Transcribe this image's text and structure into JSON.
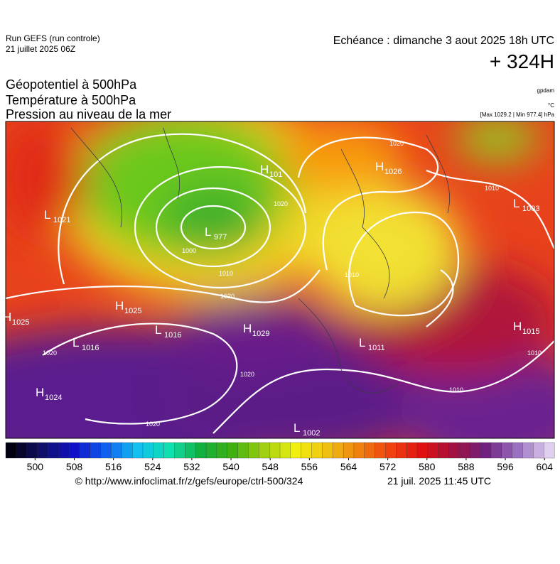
{
  "header": {
    "run": "Run GEFS (run controle)",
    "date": "21 juillet 2025 06Z",
    "echeance": "Echéance : dimanche 3 aout 2025 18h UTC",
    "lead": "+ 324H",
    "titles": [
      "Géopotentiel à 500hPa",
      "Température à 500hPa",
      "Pression au niveau de la mer"
    ],
    "units": [
      "gpdam",
      "°C"
    ],
    "range": "[Max 1029.2 | Min 977.4] hPa"
  },
  "map": {
    "centers": [
      {
        "type": "H",
        "value": 1026
      },
      {
        "type": "L",
        "value": 1003
      },
      {
        "type": "L",
        "value": 1021
      },
      {
        "type": "L",
        "value": 977
      },
      {
        "type": "H",
        "value": 101
      },
      {
        "type": "H",
        "value": 1025
      },
      {
        "type": "H",
        "value": 1025
      },
      {
        "type": "L",
        "value": 1016
      },
      {
        "type": "H",
        "value": 1029
      },
      {
        "type": "L",
        "value": 1016
      },
      {
        "type": "L",
        "value": 1011
      },
      {
        "type": "H",
        "value": 1015
      },
      {
        "type": "H",
        "value": 1024
      },
      {
        "type": "L",
        "value": 1002
      }
    ],
    "isobar_labels": [
      1020,
      1010,
      1000,
      1010,
      1020,
      1020,
      1020,
      1020,
      1010,
      1010,
      1010,
      1020
    ]
  },
  "colorbar": {
    "lim": [
      494,
      606
    ],
    "ticks": [
      500,
      508,
      516,
      524,
      532,
      540,
      548,
      556,
      564,
      572,
      580,
      588,
      596,
      604
    ]
  },
  "footer": {
    "url": "© http://www.infoclimat.fr/z/gefs/europe/ctrl-500/324",
    "time": "21 juil. 2025 11:45 UTC"
  }
}
